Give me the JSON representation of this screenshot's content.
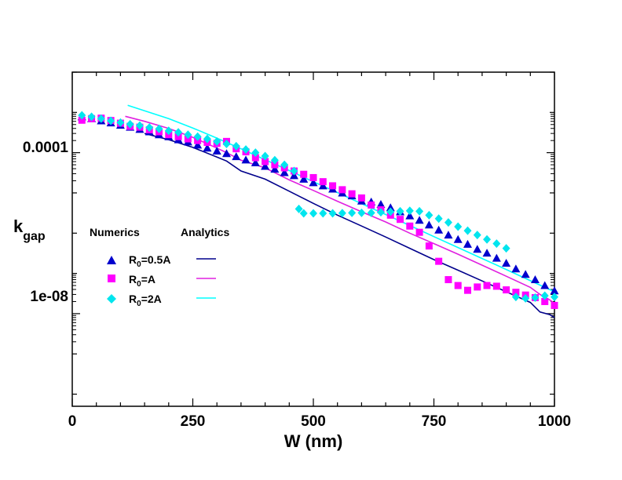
{
  "chart_data": {
    "type": "scatter",
    "title": "",
    "xlabel": "W (nm)",
    "ylabel_main": "k",
    "ylabel_sub": "gap",
    "x_range": [
      0,
      1000
    ],
    "y_scale": "log",
    "y_range": [
      5e-11,
      0.01
    ],
    "x_ticks": [
      0,
      250,
      500,
      750,
      1000
    ],
    "x_tick_labels": [
      "0",
      "250",
      "500",
      "750",
      "1000"
    ],
    "y_ticks": [
      0.0001,
      1e-08
    ],
    "y_tick_labels": [
      "0.0001",
      "1e-08"
    ],
    "legend": {
      "numerics_header": "Numerics",
      "analytics_header": "Analytics",
      "entries": [
        {
          "label_main": "R",
          "label_sub": "0",
          "label_rest": "=0.5A"
        },
        {
          "label_main": "R",
          "label_sub": "0",
          "label_rest": "=A"
        },
        {
          "label_main": "R",
          "label_sub": "0",
          "label_rest": "=2A"
        }
      ]
    },
    "series": [
      {
        "name": "R0=0.5A numerics",
        "kind": "points",
        "marker": "triangle",
        "color": "#0000cd",
        "points": [
          [
            20,
            0.00078
          ],
          [
            40,
            0.0007
          ],
          [
            60,
            0.00062
          ],
          [
            80,
            0.00055
          ],
          [
            100,
            0.00048
          ],
          [
            120,
            0.00043
          ],
          [
            140,
            0.00038
          ],
          [
            160,
            0.00033
          ],
          [
            180,
            0.00028
          ],
          [
            200,
            0.00025
          ],
          [
            220,
            0.00021
          ],
          [
            240,
            0.000185
          ],
          [
            260,
            0.000155
          ],
          [
            280,
            0.00013
          ],
          [
            300,
            0.00011
          ],
          [
            320,
            9.5e-05
          ],
          [
            340,
            8e-05
          ],
          [
            360,
            6.6e-05
          ],
          [
            380,
            5.6e-05
          ],
          [
            400,
            4.6e-05
          ],
          [
            420,
            3.9e-05
          ],
          [
            440,
            3.2e-05
          ],
          [
            460,
            2.7e-05
          ],
          [
            480,
            2.2e-05
          ],
          [
            500,
            1.8e-05
          ],
          [
            520,
            1.5e-05
          ],
          [
            540,
            1.25e-05
          ],
          [
            560,
            1e-05
          ],
          [
            580,
            8.5e-06
          ],
          [
            600,
            6.3e-06
          ],
          [
            620,
            6e-06
          ],
          [
            640,
            5.2e-06
          ],
          [
            660,
            4.3e-06
          ],
          [
            680,
            3.4e-06
          ],
          [
            700,
            2.7e-06
          ],
          [
            720,
            2.1e-06
          ],
          [
            740,
            1.6e-06
          ],
          [
            760,
            1.2e-06
          ],
          [
            780,
            9e-07
          ],
          [
            800,
            7e-07
          ],
          [
            820,
            5.3e-07
          ],
          [
            840,
            4e-07
          ],
          [
            860,
            3.2e-07
          ],
          [
            880,
            2.4e-07
          ],
          [
            900,
            1.8e-07
          ],
          [
            920,
            1.3e-07
          ],
          [
            940,
            9.5e-08
          ],
          [
            960,
            7e-08
          ],
          [
            980,
            5e-08
          ],
          [
            1000,
            3.7e-08
          ]
        ]
      },
      {
        "name": "R0=A numerics",
        "kind": "points",
        "marker": "square",
        "color": "#ff00ff",
        "points": [
          [
            20,
            0.00064
          ],
          [
            40,
            0.0007
          ],
          [
            60,
            0.00072
          ],
          [
            80,
            0.00063
          ],
          [
            100,
            0.00054
          ],
          [
            120,
            0.00045
          ],
          [
            140,
            0.00043
          ],
          [
            160,
            0.00037
          ],
          [
            180,
            0.00033
          ],
          [
            200,
            0.00028
          ],
          [
            220,
            0.00025
          ],
          [
            240,
            0.00022
          ],
          [
            260,
            0.0002
          ],
          [
            280,
            0.00018
          ],
          [
            300,
            0.00017
          ],
          [
            320,
            0.00019
          ],
          [
            340,
            0.000125
          ],
          [
            360,
            0.000105
          ],
          [
            380,
            7.5e-05
          ],
          [
            400,
            6e-05
          ],
          [
            420,
            5e-05
          ],
          [
            440,
            4.2e-05
          ],
          [
            460,
            3.5e-05
          ],
          [
            480,
            2.9e-05
          ],
          [
            500,
            2.4e-05
          ],
          [
            520,
            1.9e-05
          ],
          [
            540,
            1.5e-05
          ],
          [
            560,
            1.2e-05
          ],
          [
            580,
            9.5e-06
          ],
          [
            600,
            7.5e-06
          ],
          [
            620,
            5e-06
          ],
          [
            640,
            3.8e-06
          ],
          [
            660,
            2.8e-06
          ],
          [
            680,
            2.2e-06
          ],
          [
            700,
            1.5e-06
          ],
          [
            720,
            1.05e-06
          ],
          [
            740,
            4.8e-07
          ],
          [
            760,
            2e-07
          ],
          [
            780,
            7e-08
          ],
          [
            800,
            5e-08
          ],
          [
            820,
            3.8e-08
          ],
          [
            840,
            4.6e-08
          ],
          [
            860,
            5e-08
          ],
          [
            880,
            4.8e-08
          ],
          [
            900,
            3.9e-08
          ],
          [
            920,
            3.4e-08
          ],
          [
            940,
            2.9e-08
          ],
          [
            960,
            2.5e-08
          ],
          [
            980,
            2e-08
          ],
          [
            1000,
            1.6e-08
          ]
        ]
      },
      {
        "name": "R0=2A numerics",
        "kind": "points",
        "marker": "diamond",
        "color": "#00e5ee",
        "points": [
          [
            20,
            0.00085
          ],
          [
            40,
            0.00078
          ],
          [
            60,
            0.0007
          ],
          [
            80,
            0.00062
          ],
          [
            100,
            0.00056
          ],
          [
            120,
            0.00051
          ],
          [
            140,
            0.00047
          ],
          [
            160,
            0.00042
          ],
          [
            180,
            0.00039
          ],
          [
            200,
            0.00035
          ],
          [
            220,
            0.00032
          ],
          [
            240,
            0.00028
          ],
          [
            260,
            0.00025
          ],
          [
            280,
            0.00022
          ],
          [
            300,
            0.00019
          ],
          [
            320,
            0.000165
          ],
          [
            340,
            0.000145
          ],
          [
            360,
            0.00012
          ],
          [
            380,
            0.0001
          ],
          [
            400,
            8.2e-05
          ],
          [
            420,
            6.5e-05
          ],
          [
            440,
            5e-05
          ],
          [
            460,
            3.5e-05
          ],
          [
            470,
            4e-06
          ],
          [
            480,
            3.1e-06
          ],
          [
            500,
            3.1e-06
          ],
          [
            520,
            3.1e-06
          ],
          [
            540,
            3.1e-06
          ],
          [
            560,
            3.15e-06
          ],
          [
            580,
            3.2e-06
          ],
          [
            600,
            3.2e-06
          ],
          [
            620,
            3.2e-06
          ],
          [
            640,
            3.3e-06
          ],
          [
            660,
            3.4e-06
          ],
          [
            680,
            3.5e-06
          ],
          [
            700,
            3.6e-06
          ],
          [
            720,
            3.5e-06
          ],
          [
            740,
            2.8e-06
          ],
          [
            760,
            2.3e-06
          ],
          [
            780,
            1.85e-06
          ],
          [
            800,
            1.45e-06
          ],
          [
            820,
            1.15e-06
          ],
          [
            840,
            9e-07
          ],
          [
            860,
            7e-07
          ],
          [
            880,
            5.5e-07
          ],
          [
            900,
            4.2e-07
          ],
          [
            920,
            2.6e-08
          ],
          [
            940,
            2.4e-08
          ],
          [
            960,
            2.5e-08
          ],
          [
            980,
            2.8e-08
          ],
          [
            1000,
            2.6e-08
          ]
        ]
      },
      {
        "name": "R0=0.5A analytics",
        "kind": "line",
        "color": "#00008b",
        "points": [
          [
            150,
            0.0003
          ],
          [
            200,
            0.00021
          ],
          [
            250,
            0.000135
          ],
          [
            300,
            7.8e-05
          ],
          [
            320,
            6.2e-05
          ],
          [
            350,
            3.5e-05
          ],
          [
            400,
            2.2e-05
          ],
          [
            450,
            1.1e-05
          ],
          [
            500,
            5.5e-06
          ],
          [
            550,
            2.8e-06
          ],
          [
            600,
            1.5e-06
          ],
          [
            650,
            8e-07
          ],
          [
            700,
            4.2e-07
          ],
          [
            750,
            2.2e-07
          ],
          [
            800,
            1.2e-07
          ],
          [
            850,
            6.5e-08
          ],
          [
            900,
            3.5e-08
          ],
          [
            950,
            1.9e-08
          ],
          [
            970,
            1.1e-08
          ],
          [
            990,
            9.5e-09
          ],
          [
            1000,
            8e-09
          ]
        ]
      },
      {
        "name": "R0=A analytics",
        "kind": "line",
        "color": "#e020e0",
        "points": [
          [
            110,
            0.0008
          ],
          [
            150,
            0.0006
          ],
          [
            200,
            0.0004
          ],
          [
            250,
            0.00024
          ],
          [
            300,
            0.00013
          ],
          [
            320,
            0.0001
          ],
          [
            350,
            6.5e-05
          ],
          [
            400,
            4.2e-05
          ],
          [
            450,
            2.1e-05
          ],
          [
            500,
            1.15e-05
          ],
          [
            550,
            6.2e-06
          ],
          [
            600,
            3.4e-06
          ],
          [
            650,
            1.9e-06
          ],
          [
            700,
            1e-06
          ],
          [
            750,
            5.5e-07
          ],
          [
            800,
            3e-07
          ],
          [
            850,
            1.6e-07
          ],
          [
            900,
            8.5e-08
          ],
          [
            950,
            4.5e-08
          ],
          [
            970,
            3e-08
          ],
          [
            990,
            2.2e-08
          ],
          [
            1000,
            1.8e-08
          ]
        ]
      },
      {
        "name": "R0=2A analytics",
        "kind": "line",
        "color": "#00ffff",
        "points": [
          [
            115,
            0.0015
          ],
          [
            150,
            0.0011
          ],
          [
            200,
            0.0007
          ],
          [
            250,
            0.00041
          ],
          [
            300,
            0.00023
          ],
          [
            350,
            0.000125
          ],
          [
            400,
            6.7e-05
          ],
          [
            450,
            3.6e-05
          ],
          [
            500,
            1.9e-05
          ],
          [
            550,
            1.02e-05
          ],
          [
            600,
            5.4e-06
          ],
          [
            650,
            2.9e-06
          ],
          [
            700,
            1.55e-06
          ],
          [
            750,
            8.2e-07
          ],
          [
            800,
            4.4e-07
          ],
          [
            850,
            2.35e-07
          ],
          [
            900,
            1.25e-07
          ],
          [
            950,
            6.6e-08
          ],
          [
            1000,
            3.5e-08
          ]
        ]
      }
    ]
  }
}
